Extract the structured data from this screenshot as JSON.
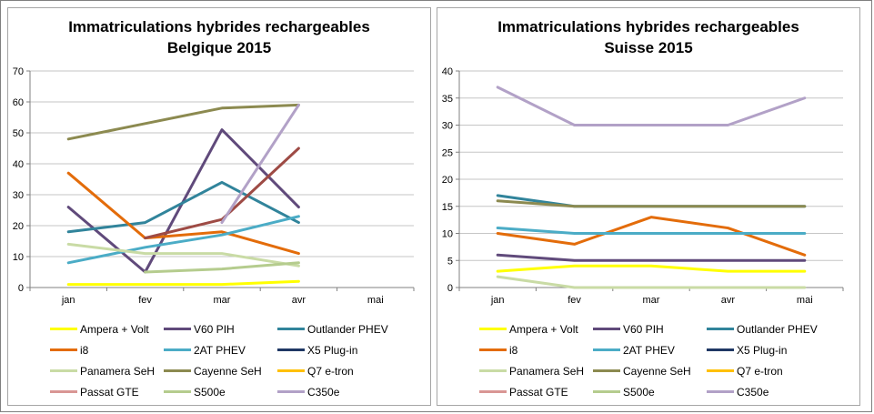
{
  "page": {
    "background": "#ffffff",
    "frame_border_color": "#7f7f7f",
    "panel_border_color": "#a6a6a6"
  },
  "chart_data": [
    {
      "type": "line",
      "title_line1": "Immatriculations hybrides rechargeables",
      "title_line2": "Belgique 2015",
      "categories": [
        "jan",
        "fev",
        "mar",
        "avr",
        "mai"
      ],
      "ylim": [
        0,
        70
      ],
      "yticks": [
        0,
        10,
        20,
        30,
        40,
        50,
        60,
        70
      ],
      "grid": true,
      "legend_position": "bottom",
      "axis_color": "#808080",
      "grid_color": "#c6c6c6",
      "series": [
        {
          "name": "Ampera + Volt",
          "color": "#FFFF00",
          "values": [
            1,
            1,
            1,
            2,
            null
          ]
        },
        {
          "name": "V60 PIH",
          "color": "#604A7B",
          "values": [
            26,
            5,
            51,
            26,
            null
          ]
        },
        {
          "name": "Outlander PHEV",
          "color": "#31849B",
          "values": [
            18,
            21,
            34,
            21,
            null
          ]
        },
        {
          "name": "i8",
          "color": "#E36C0A",
          "values": [
            37,
            16,
            18,
            11,
            null
          ]
        },
        {
          "name": "2AT PHEV",
          "color": "#4BACC6",
          "values": [
            8,
            13,
            17,
            23,
            null
          ]
        },
        {
          "name": "X5 Plug-in",
          "color": "#1F3864",
          "values": [
            null,
            null,
            null,
            null,
            null
          ]
        },
        {
          "name": "Panamera SeH",
          "color": "#C9DBA5",
          "values": [
            14,
            11,
            11,
            7,
            null
          ]
        },
        {
          "name": "Cayenne SeH",
          "color": "#8C8A50",
          "values": [
            48,
            53,
            58,
            59,
            null
          ]
        },
        {
          "name": "Q7 e-tron",
          "color": "#FFC000",
          "values": [
            null,
            null,
            null,
            null,
            null
          ]
        },
        {
          "name": "Passat GTE",
          "color": "#9E4B45",
          "legend_color": "#D99694",
          "values": [
            null,
            16,
            22,
            45,
            null
          ]
        },
        {
          "name": "S500e",
          "color": "#B5CC8E",
          "values": [
            null,
            5,
            6,
            8,
            null
          ]
        },
        {
          "name": "C350e",
          "color": "#B2A1C7",
          "values": [
            null,
            null,
            21,
            59,
            null
          ]
        }
      ]
    },
    {
      "type": "line",
      "title_line1": "Immatriculations hybrides rechargeables",
      "title_line2": "Suisse 2015",
      "categories": [
        "jan",
        "fev",
        "mar",
        "avr",
        "mai"
      ],
      "ylim": [
        0,
        40
      ],
      "yticks": [
        0,
        5,
        10,
        15,
        20,
        25,
        30,
        35,
        40
      ],
      "grid": true,
      "legend_position": "bottom",
      "axis_color": "#808080",
      "grid_color": "#c6c6c6",
      "series": [
        {
          "name": "Ampera + Volt",
          "color": "#FFFF00",
          "values": [
            3,
            4,
            4,
            3,
            3
          ]
        },
        {
          "name": "V60 PIH",
          "color": "#604A7B",
          "values": [
            6,
            5,
            5,
            5,
            5
          ]
        },
        {
          "name": "Outlander PHEV",
          "color": "#31849B",
          "values": [
            17,
            15,
            15,
            15,
            15
          ]
        },
        {
          "name": "i8",
          "color": "#E36C0A",
          "values": [
            10,
            8,
            13,
            11,
            6
          ]
        },
        {
          "name": "2AT PHEV",
          "color": "#4BACC6",
          "values": [
            11,
            10,
            10,
            10,
            10
          ]
        },
        {
          "name": "X5 Plug-in",
          "color": "#1F3864",
          "values": [
            null,
            null,
            null,
            null,
            null
          ]
        },
        {
          "name": "Panamera SeH",
          "color": "#C9DBA5",
          "values": [
            2,
            0,
            0,
            0,
            0
          ]
        },
        {
          "name": "Cayenne SeH",
          "color": "#8C8A50",
          "values": [
            16,
            15,
            15,
            15,
            15
          ]
        },
        {
          "name": "Q7 e-tron",
          "color": "#FFC000",
          "values": [
            null,
            null,
            null,
            null,
            null
          ]
        },
        {
          "name": "Passat GTE",
          "color": "#9E4B45",
          "legend_color": "#D99694",
          "values": [
            null,
            null,
            null,
            null,
            null
          ]
        },
        {
          "name": "S500e",
          "color": "#B5CC8E",
          "values": [
            null,
            null,
            null,
            null,
            null
          ]
        },
        {
          "name": "C350e",
          "color": "#B2A1C7",
          "values": [
            37,
            30,
            30,
            30,
            35
          ]
        }
      ]
    }
  ]
}
